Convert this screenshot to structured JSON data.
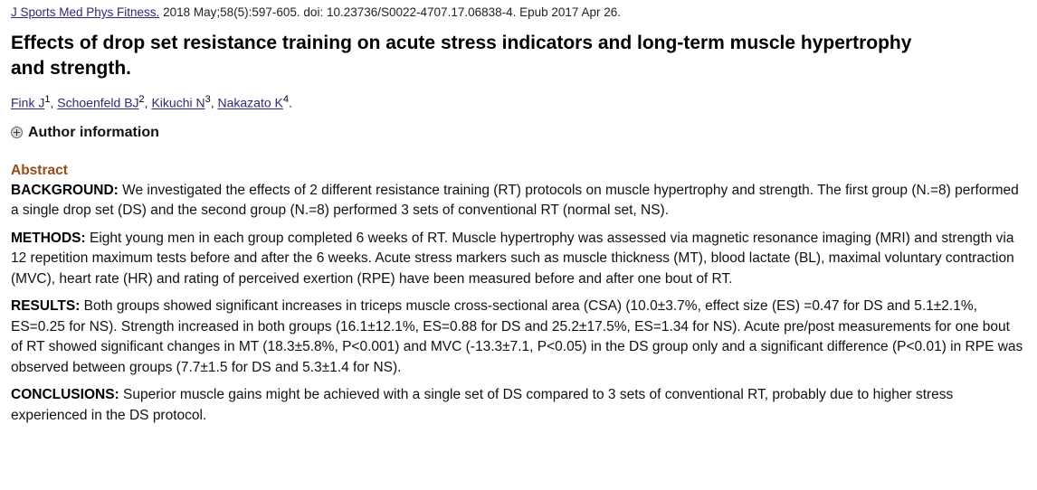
{
  "citation": {
    "journal": "J Sports Med Phys Fitness.",
    "details": "2018 May;58(5):597-605. doi: 10.23736/S0022-4707.17.06838-4. Epub 2017 Apr 26."
  },
  "title": "Effects of drop set resistance training on acute stress indicators and long-term muscle hypertrophy and strength.",
  "authors": [
    {
      "name": "Fink J",
      "sup": "1"
    },
    {
      "name": "Schoenfeld BJ",
      "sup": "2"
    },
    {
      "name": "Kikuchi N",
      "sup": "3"
    },
    {
      "name": "Nakazato K",
      "sup": "4"
    }
  ],
  "author_info_label": "Author information",
  "abstract": {
    "heading": "Abstract",
    "background_label": "BACKGROUND:",
    "background_text": " We investigated the effects of 2 different resistance training (RT) protocols on muscle hypertrophy and strength. The first group (N.=8) performed a single drop set (DS) and the second group (N.=8) performed 3 sets of conventional RT (normal set, NS).",
    "methods_label": "METHODS:",
    "methods_text": " Eight young men in each group completed 6 weeks of RT. Muscle hypertrophy was assessed via magnetic resonance imaging (MRI) and strength via 12 repetition maximum tests before and after the 6 weeks. Acute stress markers such as muscle thickness (MT), blood lactate (BL), maximal voluntary contraction (MVC), heart rate (HR) and rating of perceived exertion (RPE) have been measured before and after one bout of RT.",
    "results_label": "RESULTS:",
    "results_text": " Both groups showed significant increases in triceps muscle cross-sectional area (CSA) (10.0±3.7%, effect size (ES) =0.47 for DS and 5.1±2.1%, ES=0.25 for NS). Strength increased in both groups (16.1±12.1%, ES=0.88 for DS and 25.2±17.5%, ES=1.34 for NS). Acute pre/post measurements for one bout of RT showed significant changes in MT (18.3±5.8%, P<0.001) and MVC (-13.3±7.1, P<0.05) in the DS group only and a significant difference (P<0.01) in RPE was observed between groups (7.7±1.5 for DS and 5.3±1.4 for NS).",
    "conclusions_label": "CONCLUSIONS:",
    "conclusions_text": " Superior muscle gains might be achieved with a single set of DS compared to 3 sets of conventional RT, probably due to higher stress experienced in the DS protocol."
  }
}
